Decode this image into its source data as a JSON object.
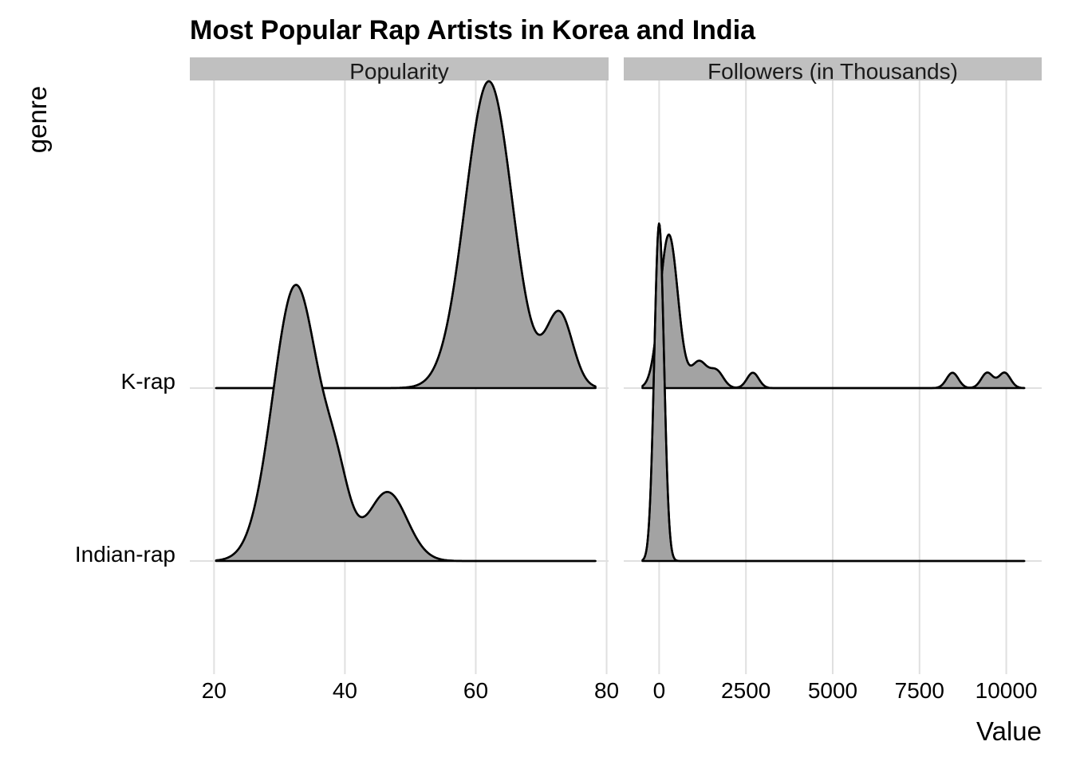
{
  "chart_data": {
    "type": "ridgeline",
    "title": "Most Popular Rap Artists in Korea and India",
    "xlabel": "Value",
    "ylabel": "genre",
    "grid": true,
    "categories": [
      "Indian-rap",
      "K-rap"
    ],
    "fill_color": "#a3a3a3",
    "strip_color": "#c0c0c0",
    "facets": [
      {
        "label": "Popularity",
        "xlim": [
          16.3,
          80.3
        ],
        "xticks": [
          20,
          40,
          60,
          80
        ],
        "series": [
          {
            "name": "K-rap",
            "components": [
              {
                "mean": 62,
                "sd": 3.6,
                "weight": 1.0
              },
              {
                "mean": 72.8,
                "sd": 2.0,
                "weight": 0.24
              }
            ],
            "range": [
              20.3,
              78.3
            ],
            "peak_height": 1.0
          },
          {
            "name": "Indian-rap",
            "components": [
              {
                "mean": 32.5,
                "sd": 3.5,
                "weight": 1.0
              },
              {
                "mean": 38.8,
                "sd": 2.0,
                "weight": 0.22
              },
              {
                "mean": 46.5,
                "sd": 3.0,
                "weight": 0.25
              }
            ],
            "range": [
              20.3,
              78.3
            ],
            "peak_height": 0.9
          }
        ]
      },
      {
        "label": "Followers (in Thousands)",
        "xlim": [
          -1020,
          11020
        ],
        "xticks": [
          0,
          2500,
          5000,
          7500,
          10000
        ],
        "xtick_labels": [
          "0",
          "2500",
          "5000",
          "7500",
          "10000"
        ],
        "series": [
          {
            "name": "K-rap",
            "components": [
              {
                "mean": 280,
                "sd": 260,
                "weight": 1.0
              },
              {
                "mean": 1150,
                "sd": 220,
                "weight": 0.17
              },
              {
                "mean": 1650,
                "sd": 200,
                "weight": 0.11
              },
              {
                "mean": 2700,
                "sd": 170,
                "weight": 0.1
              },
              {
                "mean": 8450,
                "sd": 170,
                "weight": 0.1
              },
              {
                "mean": 9450,
                "sd": 170,
                "weight": 0.1
              },
              {
                "mean": 9950,
                "sd": 170,
                "weight": 0.1
              }
            ],
            "range": [
              -480,
              10520
            ],
            "peak_height": 0.5
          },
          {
            "name": "Indian-rap",
            "components": [
              {
                "mean": 0,
                "sd": 140,
                "weight": 1.0
              }
            ],
            "range": [
              -480,
              10520
            ],
            "peak_height": 1.1
          }
        ]
      }
    ]
  }
}
